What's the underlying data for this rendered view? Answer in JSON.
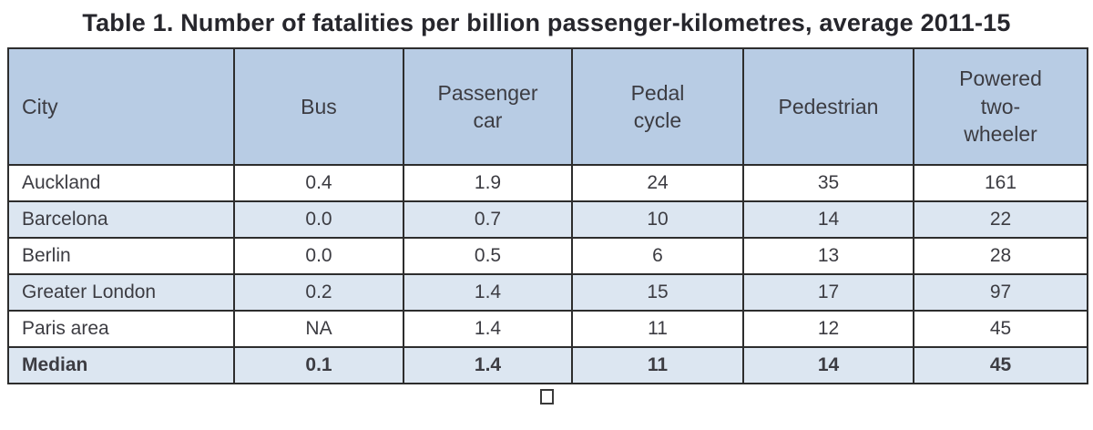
{
  "title": "Table 1. Number of fatalities per billion passenger-kilometres, average 2011-15",
  "table": {
    "columns": [
      "City",
      "Bus",
      "Passenger\ncar",
      "Pedal\ncycle",
      "Pedestrian",
      "Powered\ntwo-\nwheeler"
    ],
    "rows": [
      {
        "city": "Auckland",
        "values": [
          "0.4",
          "1.9",
          "24",
          "35",
          "161"
        ],
        "shaded": false,
        "bold": false
      },
      {
        "city": "Barcelona",
        "values": [
          "0.0",
          "0.7",
          "10",
          "14",
          "22"
        ],
        "shaded": true,
        "bold": false
      },
      {
        "city": "Berlin",
        "values": [
          "0.0",
          "0.5",
          "6",
          "13",
          "28"
        ],
        "shaded": false,
        "bold": false
      },
      {
        "city": "Greater London",
        "values": [
          "0.2",
          "1.4",
          "15",
          "17",
          "97"
        ],
        "shaded": true,
        "bold": false
      },
      {
        "city": "Paris area",
        "values": [
          "NA",
          "1.4",
          "11",
          "12",
          "45"
        ],
        "shaded": false,
        "bold": false
      },
      {
        "city": "Median",
        "values": [
          "0.1",
          "1.4",
          "11",
          "14",
          "45"
        ],
        "shaded": true,
        "bold": true
      }
    ]
  },
  "chart_data": {
    "type": "table",
    "title": "Table 1. Number of fatalities per billion passenger-kilometres, average 2011-15",
    "columns": [
      "City",
      "Bus",
      "Passenger car",
      "Pedal cycle",
      "Pedestrian",
      "Powered two-wheeler"
    ],
    "rows": [
      [
        "Auckland",
        0.4,
        1.9,
        24,
        35,
        161
      ],
      [
        "Barcelona",
        0.0,
        0.7,
        10,
        14,
        22
      ],
      [
        "Berlin",
        0.0,
        0.5,
        6,
        13,
        28
      ],
      [
        "Greater London",
        0.2,
        1.4,
        15,
        17,
        97
      ],
      [
        "Paris area",
        "NA",
        1.4,
        11,
        12,
        45
      ],
      [
        "Median",
        0.1,
        1.4,
        11,
        14,
        45
      ]
    ]
  },
  "icons": {
    "footer_square": "empty-square"
  },
  "colors": {
    "header_bg": "#b8cce4",
    "alt_row_bg": "#dce6f1",
    "border": "#2d2d2d",
    "cell_text": "#3c3c42",
    "title_text": "#26262c"
  }
}
